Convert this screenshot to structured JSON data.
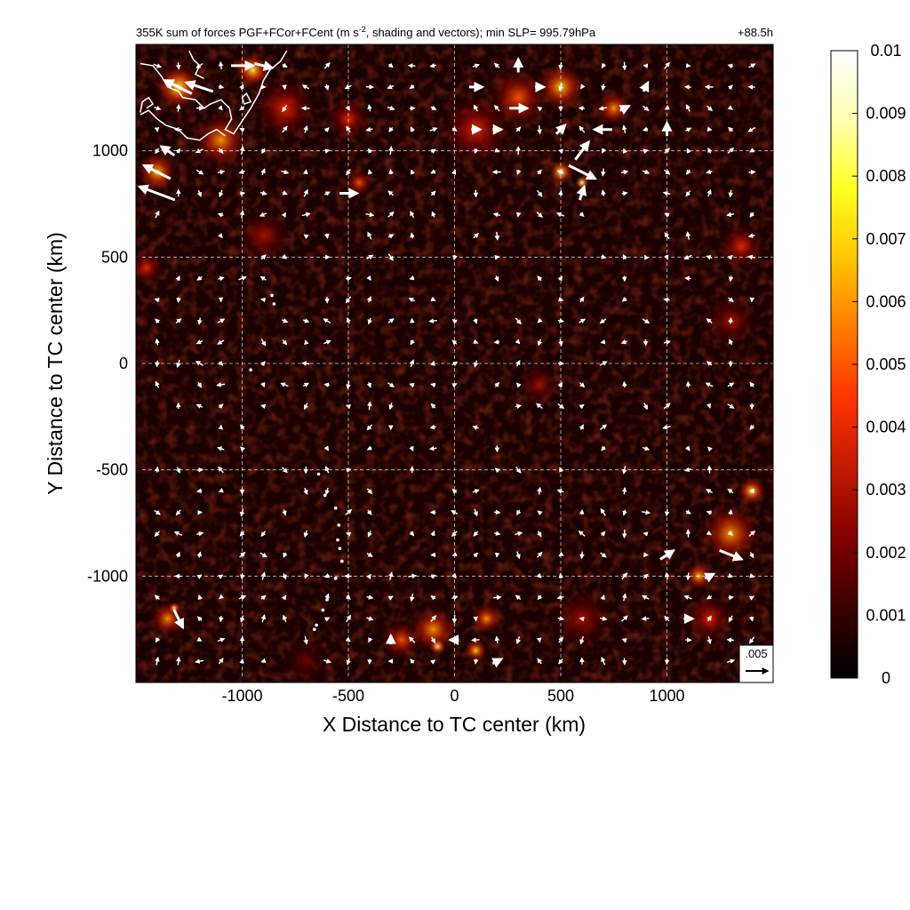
{
  "chart_data": {
    "type": "heatmap",
    "title": "355K sum of forces PGF+FCor+FCent (m s",
    "title_sup": "-2",
    "title_rest": ", shading and vectors); min SLP= 995.79hPa",
    "time_label": "+88.5h",
    "xlabel": "X Distance to TC center (km)",
    "ylabel": "Y Distance to TC center (km)",
    "xlim": [
      -1500,
      1500
    ],
    "ylim": [
      -1500,
      1500
    ],
    "x_ticks": [
      -1000,
      -500,
      0,
      500,
      1000
    ],
    "x_tick_labels": [
      "-1000",
      "-500",
      "0",
      "500",
      "1000"
    ],
    "y_ticks": [
      -1000,
      -500,
      0,
      500,
      1000
    ],
    "y_tick_labels": [
      "-1000",
      "-500",
      "0",
      "500",
      "1000"
    ],
    "grid": true,
    "colorbar": {
      "min": 0,
      "max": 0.01,
      "ticks": [
        0,
        0.001,
        0.002,
        0.003,
        0.004,
        0.005,
        0.006,
        0.007,
        0.008,
        0.009,
        0.01
      ],
      "tick_labels": [
        "0",
        "0.001",
        "0.002",
        "0.003",
        "0.004",
        "0.005",
        "0.006",
        "0.007",
        "0.008",
        "0.009",
        "0.01"
      ],
      "colormap": [
        "#000000",
        "#3a0000",
        "#800000",
        "#c01a00",
        "#ff3300",
        "#ff7a00",
        "#ffc400",
        "#ffff20",
        "#ffffb0",
        "#ffffff"
      ]
    },
    "reference_vector": {
      "label": ".005",
      "magnitude": 0.005
    },
    "hotspots": [
      {
        "x": 500,
        "y": 900,
        "v": 0.009,
        "r": 60
      },
      {
        "x": 600,
        "y": 850,
        "v": 0.01,
        "r": 35
      },
      {
        "x": 500,
        "y": 1300,
        "v": 0.007,
        "r": 120
      },
      {
        "x": 300,
        "y": 1250,
        "v": 0.005,
        "r": 150
      },
      {
        "x": 750,
        "y": 1200,
        "v": 0.006,
        "r": 90
      },
      {
        "x": 100,
        "y": 1100,
        "v": 0.004,
        "r": 180
      },
      {
        "x": -1300,
        "y": 1300,
        "v": 0.008,
        "r": 120
      },
      {
        "x": -1400,
        "y": 900,
        "v": 0.007,
        "r": 100
      },
      {
        "x": -1100,
        "y": 1050,
        "v": 0.006,
        "r": 140
      },
      {
        "x": -950,
        "y": 1380,
        "v": 0.008,
        "r": 90
      },
      {
        "x": -800,
        "y": 1200,
        "v": 0.004,
        "r": 160
      },
      {
        "x": -450,
        "y": 850,
        "v": 0.005,
        "r": 70
      },
      {
        "x": -500,
        "y": 1150,
        "v": 0.004,
        "r": 110
      },
      {
        "x": -1450,
        "y": 450,
        "v": 0.004,
        "r": 90
      },
      {
        "x": -900,
        "y": 600,
        "v": 0.003,
        "r": 140
      },
      {
        "x": 1350,
        "y": 550,
        "v": 0.004,
        "r": 120
      },
      {
        "x": 1300,
        "y": 200,
        "v": 0.003,
        "r": 130
      },
      {
        "x": 1300,
        "y": -800,
        "v": 0.006,
        "r": 150
      },
      {
        "x": 1400,
        "y": -600,
        "v": 0.008,
        "r": 70
      },
      {
        "x": 1150,
        "y": -1000,
        "v": 0.007,
        "r": 70
      },
      {
        "x": 1200,
        "y": -1200,
        "v": 0.004,
        "r": 120
      },
      {
        "x": -100,
        "y": -1250,
        "v": 0.006,
        "r": 120
      },
      {
        "x": -80,
        "y": -1330,
        "v": 0.009,
        "r": 40
      },
      {
        "x": 100,
        "y": -1350,
        "v": 0.007,
        "r": 60
      },
      {
        "x": 150,
        "y": -1200,
        "v": 0.006,
        "r": 80
      },
      {
        "x": -250,
        "y": -1300,
        "v": 0.005,
        "r": 100
      },
      {
        "x": -1350,
        "y": -1200,
        "v": 0.006,
        "r": 90
      },
      {
        "x": -1320,
        "y": -1150,
        "v": 0.009,
        "r": 30
      },
      {
        "x": 400,
        "y": -100,
        "v": 0.003,
        "r": 100
      },
      {
        "x": 600,
        "y": -1200,
        "v": 0.003,
        "r": 150
      },
      {
        "x": -700,
        "y": -1400,
        "v": 0.002,
        "r": 120
      }
    ],
    "coastline": [
      {
        "path": [
          [
            -1480,
            1410
          ],
          [
            -1420,
            1400
          ],
          [
            -1380,
            1350
          ],
          [
            -1350,
            1300
          ],
          [
            -1300,
            1280
          ],
          [
            -1280,
            1250
          ],
          [
            -1220,
            1240
          ],
          [
            -1180,
            1200
          ],
          [
            -1150,
            1220
          ],
          [
            -1100,
            1240
          ],
          [
            -1060,
            1200
          ],
          [
            -1050,
            1150
          ],
          [
            -1080,
            1100
          ],
          [
            -1040,
            1080
          ],
          [
            -1000,
            1140
          ],
          [
            -960,
            1200
          ],
          [
            -920,
            1270
          ],
          [
            -900,
            1330
          ],
          [
            -870,
            1380
          ],
          [
            -820,
            1420
          ],
          [
            -790,
            1470
          ]
        ]
      },
      {
        "path": [
          [
            -1480,
            1170
          ],
          [
            -1440,
            1190
          ],
          [
            -1400,
            1150
          ],
          [
            -1360,
            1120
          ],
          [
            -1300,
            1100
          ],
          [
            -1260,
            1060
          ],
          [
            -1200,
            1050
          ],
          [
            -1160,
            1080
          ],
          [
            -1120,
            1100
          ],
          [
            -1080,
            1070
          ]
        ]
      },
      {
        "path": [
          [
            -1480,
            1180
          ],
          [
            -1470,
            1230
          ],
          [
            -1440,
            1250
          ],
          [
            -1420,
            1220
          ],
          [
            -1450,
            1200
          ]
        ]
      },
      {
        "path": [
          [
            -1250,
            1470
          ],
          [
            -1230,
            1430
          ],
          [
            -1200,
            1400
          ],
          [
            -1220,
            1360
          ],
          [
            -1180,
            1340
          ]
        ]
      },
      {
        "path": [
          [
            -1000,
            1250
          ],
          [
            -980,
            1270
          ],
          [
            -960,
            1230
          ],
          [
            -990,
            1220
          ],
          [
            -1000,
            1250
          ]
        ]
      }
    ],
    "islands": [
      {
        "x": -860,
        "y": 320
      },
      {
        "x": -850,
        "y": 280
      },
      {
        "x": -960,
        "y": -30
      },
      {
        "x": -640,
        "y": -520
      },
      {
        "x": -610,
        "y": -620
      },
      {
        "x": -560,
        "y": -680
      },
      {
        "x": -545,
        "y": -760
      },
      {
        "x": -550,
        "y": -830
      },
      {
        "x": -540,
        "y": -870
      },
      {
        "x": -530,
        "y": -930
      },
      {
        "x": -560,
        "y": -1010
      },
      {
        "x": -600,
        "y": -1110
      },
      {
        "x": -620,
        "y": -1160
      },
      {
        "x": -650,
        "y": -1230
      },
      {
        "x": -660,
        "y": -1250
      }
    ],
    "vectors": [
      {
        "x": -1400,
        "y": 900,
        "u": -0.006,
        "v": 0.003
      },
      {
        "x": -1400,
        "y": 800,
        "u": -0.008,
        "v": 0.003
      },
      {
        "x": -1300,
        "y": 1300,
        "u": -0.006,
        "v": 0.003
      },
      {
        "x": -1200,
        "y": 1300,
        "u": -0.006,
        "v": 0.002
      },
      {
        "x": -1000,
        "y": 1400,
        "u": 0.005,
        "v": 0
      },
      {
        "x": -900,
        "y": 1400,
        "u": 0.004,
        "v": -0.001
      },
      {
        "x": -1350,
        "y": 1000,
        "u": -0.003,
        "v": 0.002
      },
      {
        "x": -500,
        "y": 800,
        "u": 0.004,
        "v": 0
      },
      {
        "x": 300,
        "y": 1200,
        "u": 0.004,
        "v": 0
      },
      {
        "x": 100,
        "y": 1300,
        "u": 0.003,
        "v": 0
      },
      {
        "x": 600,
        "y": 1000,
        "u": 0.003,
        "v": 0.004
      },
      {
        "x": 600,
        "y": 900,
        "u": 0.006,
        "v": -0.003
      },
      {
        "x": 700,
        "y": 1100,
        "u": -0.004,
        "v": 0
      },
      {
        "x": 500,
        "y": 1100,
        "u": 0.002,
        "v": 0.002
      },
      {
        "x": 600,
        "y": 800,
        "u": 0.001,
        "v": 0.003
      },
      {
        "x": 1000,
        "y": 1100,
        "u": 0,
        "v": 0.003
      },
      {
        "x": 1300,
        "y": -900,
        "u": 0.005,
        "v": -0.002
      },
      {
        "x": 1000,
        "y": -900,
        "u": 0.003,
        "v": 0.002
      },
      {
        "x": -1300,
        "y": -1200,
        "u": 0.002,
        "v": -0.004
      },
      {
        "x": 300,
        "y": 1400,
        "u": 0,
        "v": 0.003
      },
      {
        "x": 400,
        "y": 1300,
        "u": 0.002,
        "v": 0
      },
      {
        "x": 800,
        "y": 1200,
        "u": 0.002,
        "v": 0.001
      },
      {
        "x": 200,
        "y": 1100,
        "u": 0.002,
        "v": 0
      },
      {
        "x": 100,
        "y": 1100,
        "u": 0.002,
        "v": 0
      },
      {
        "x": 200,
        "y": -1400,
        "u": 0.002,
        "v": 0.001
      },
      {
        "x": 0,
        "y": -1300,
        "u": -0.002,
        "v": 0
      },
      {
        "x": 1200,
        "y": -1000,
        "u": 0.002,
        "v": 0.001
      },
      {
        "x": 1100,
        "y": -1200,
        "u": 0.002,
        "v": 0
      },
      {
        "x": -300,
        "y": -1300,
        "u": 0,
        "v": 0.002
      },
      {
        "x": 900,
        "y": 1300,
        "u": 0.001,
        "v": 0.002
      }
    ]
  }
}
